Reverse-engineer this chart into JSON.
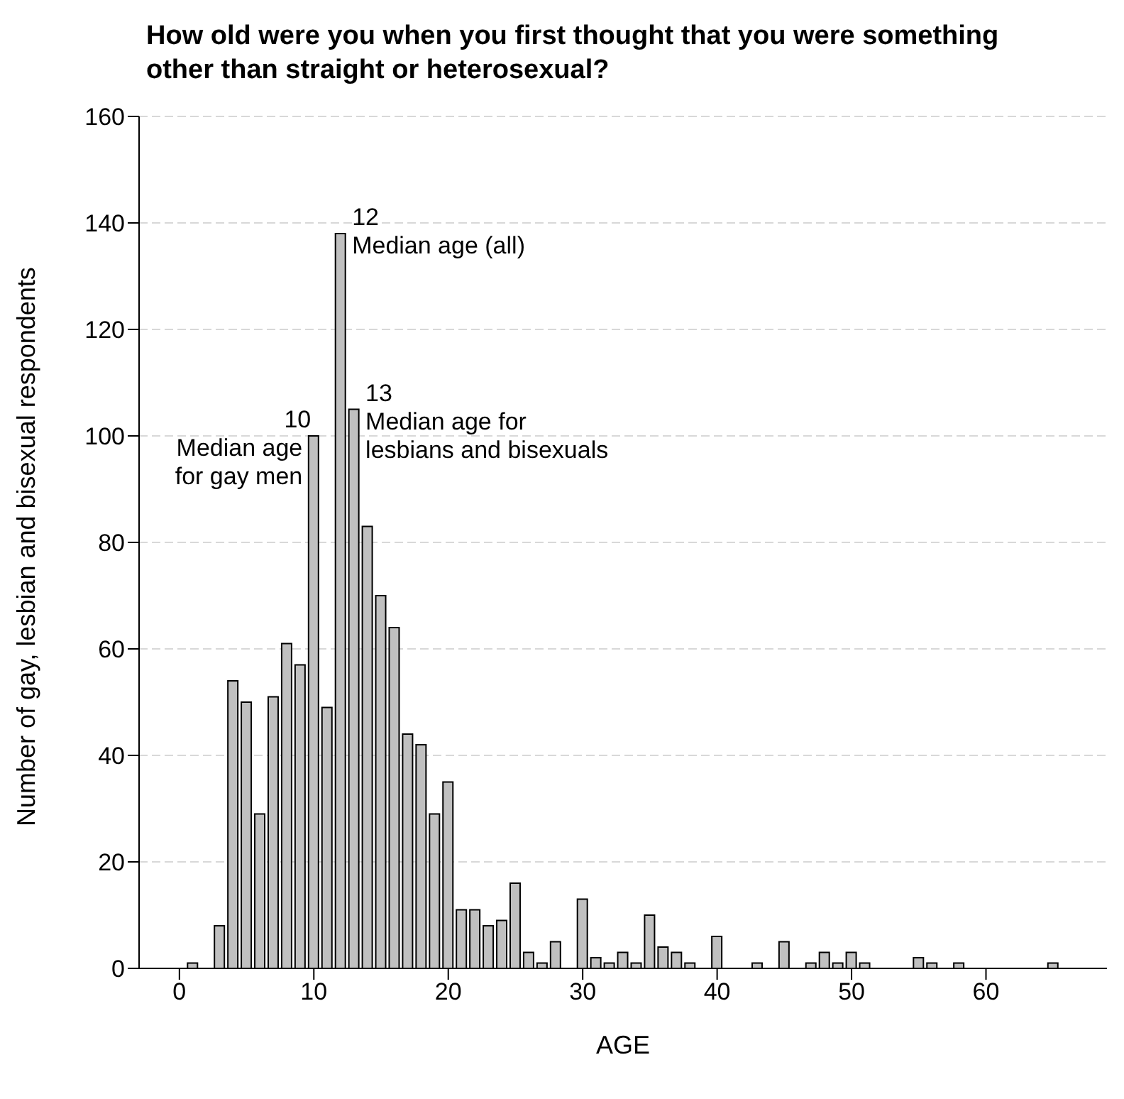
{
  "chart_data": {
    "type": "bar",
    "title": "How old were you when you first thought that you were something other than straight or heterosexual?",
    "xlabel": "AGE",
    "ylabel": "Number of gay, lesbian and bisexual respondents",
    "x": [
      1,
      2,
      3,
      4,
      5,
      6,
      7,
      8,
      9,
      10,
      11,
      12,
      13,
      14,
      15,
      16,
      17,
      18,
      19,
      20,
      21,
      22,
      23,
      24,
      25,
      26,
      27,
      28,
      29,
      30,
      31,
      32,
      33,
      34,
      35,
      36,
      37,
      38,
      39,
      40,
      41,
      42,
      43,
      44,
      45,
      46,
      47,
      48,
      49,
      50,
      51,
      52,
      53,
      54,
      55,
      56,
      57,
      58,
      59,
      60,
      61,
      62,
      63,
      64,
      65
    ],
    "values": [
      1,
      0,
      8,
      54,
      50,
      29,
      51,
      61,
      57,
      100,
      49,
      138,
      105,
      83,
      70,
      64,
      44,
      42,
      29,
      35,
      11,
      11,
      8,
      9,
      16,
      3,
      1,
      5,
      0,
      13,
      2,
      1,
      3,
      1,
      10,
      4,
      3,
      1,
      0,
      6,
      0,
      0,
      1,
      0,
      5,
      0,
      1,
      3,
      1,
      3,
      1,
      0,
      0,
      0,
      2,
      1,
      0,
      1,
      0,
      0,
      0,
      0,
      0,
      0,
      1
    ],
    "color": "#c0c0c0",
    "xlim": [
      -3,
      69
    ],
    "xticks": [
      0,
      10,
      20,
      30,
      40,
      50,
      60
    ],
    "ylim": [
      0,
      160
    ],
    "yticks": [
      0,
      20,
      40,
      60,
      80,
      100,
      120,
      140,
      160
    ],
    "grid": "y",
    "legend": false,
    "annotations": [
      {
        "text": "10",
        "x": 10,
        "y": 100
      },
      {
        "text": "Median age for gay men",
        "x": 10,
        "y": 100
      },
      {
        "text": "12",
        "x": 12,
        "y": 138
      },
      {
        "text": "Median age (all)",
        "x": 12,
        "y": 138
      },
      {
        "text": "13",
        "x": 13,
        "y": 105
      },
      {
        "text": "Median age for lesbians and bisexuals",
        "x": 13,
        "y": 105
      }
    ]
  }
}
